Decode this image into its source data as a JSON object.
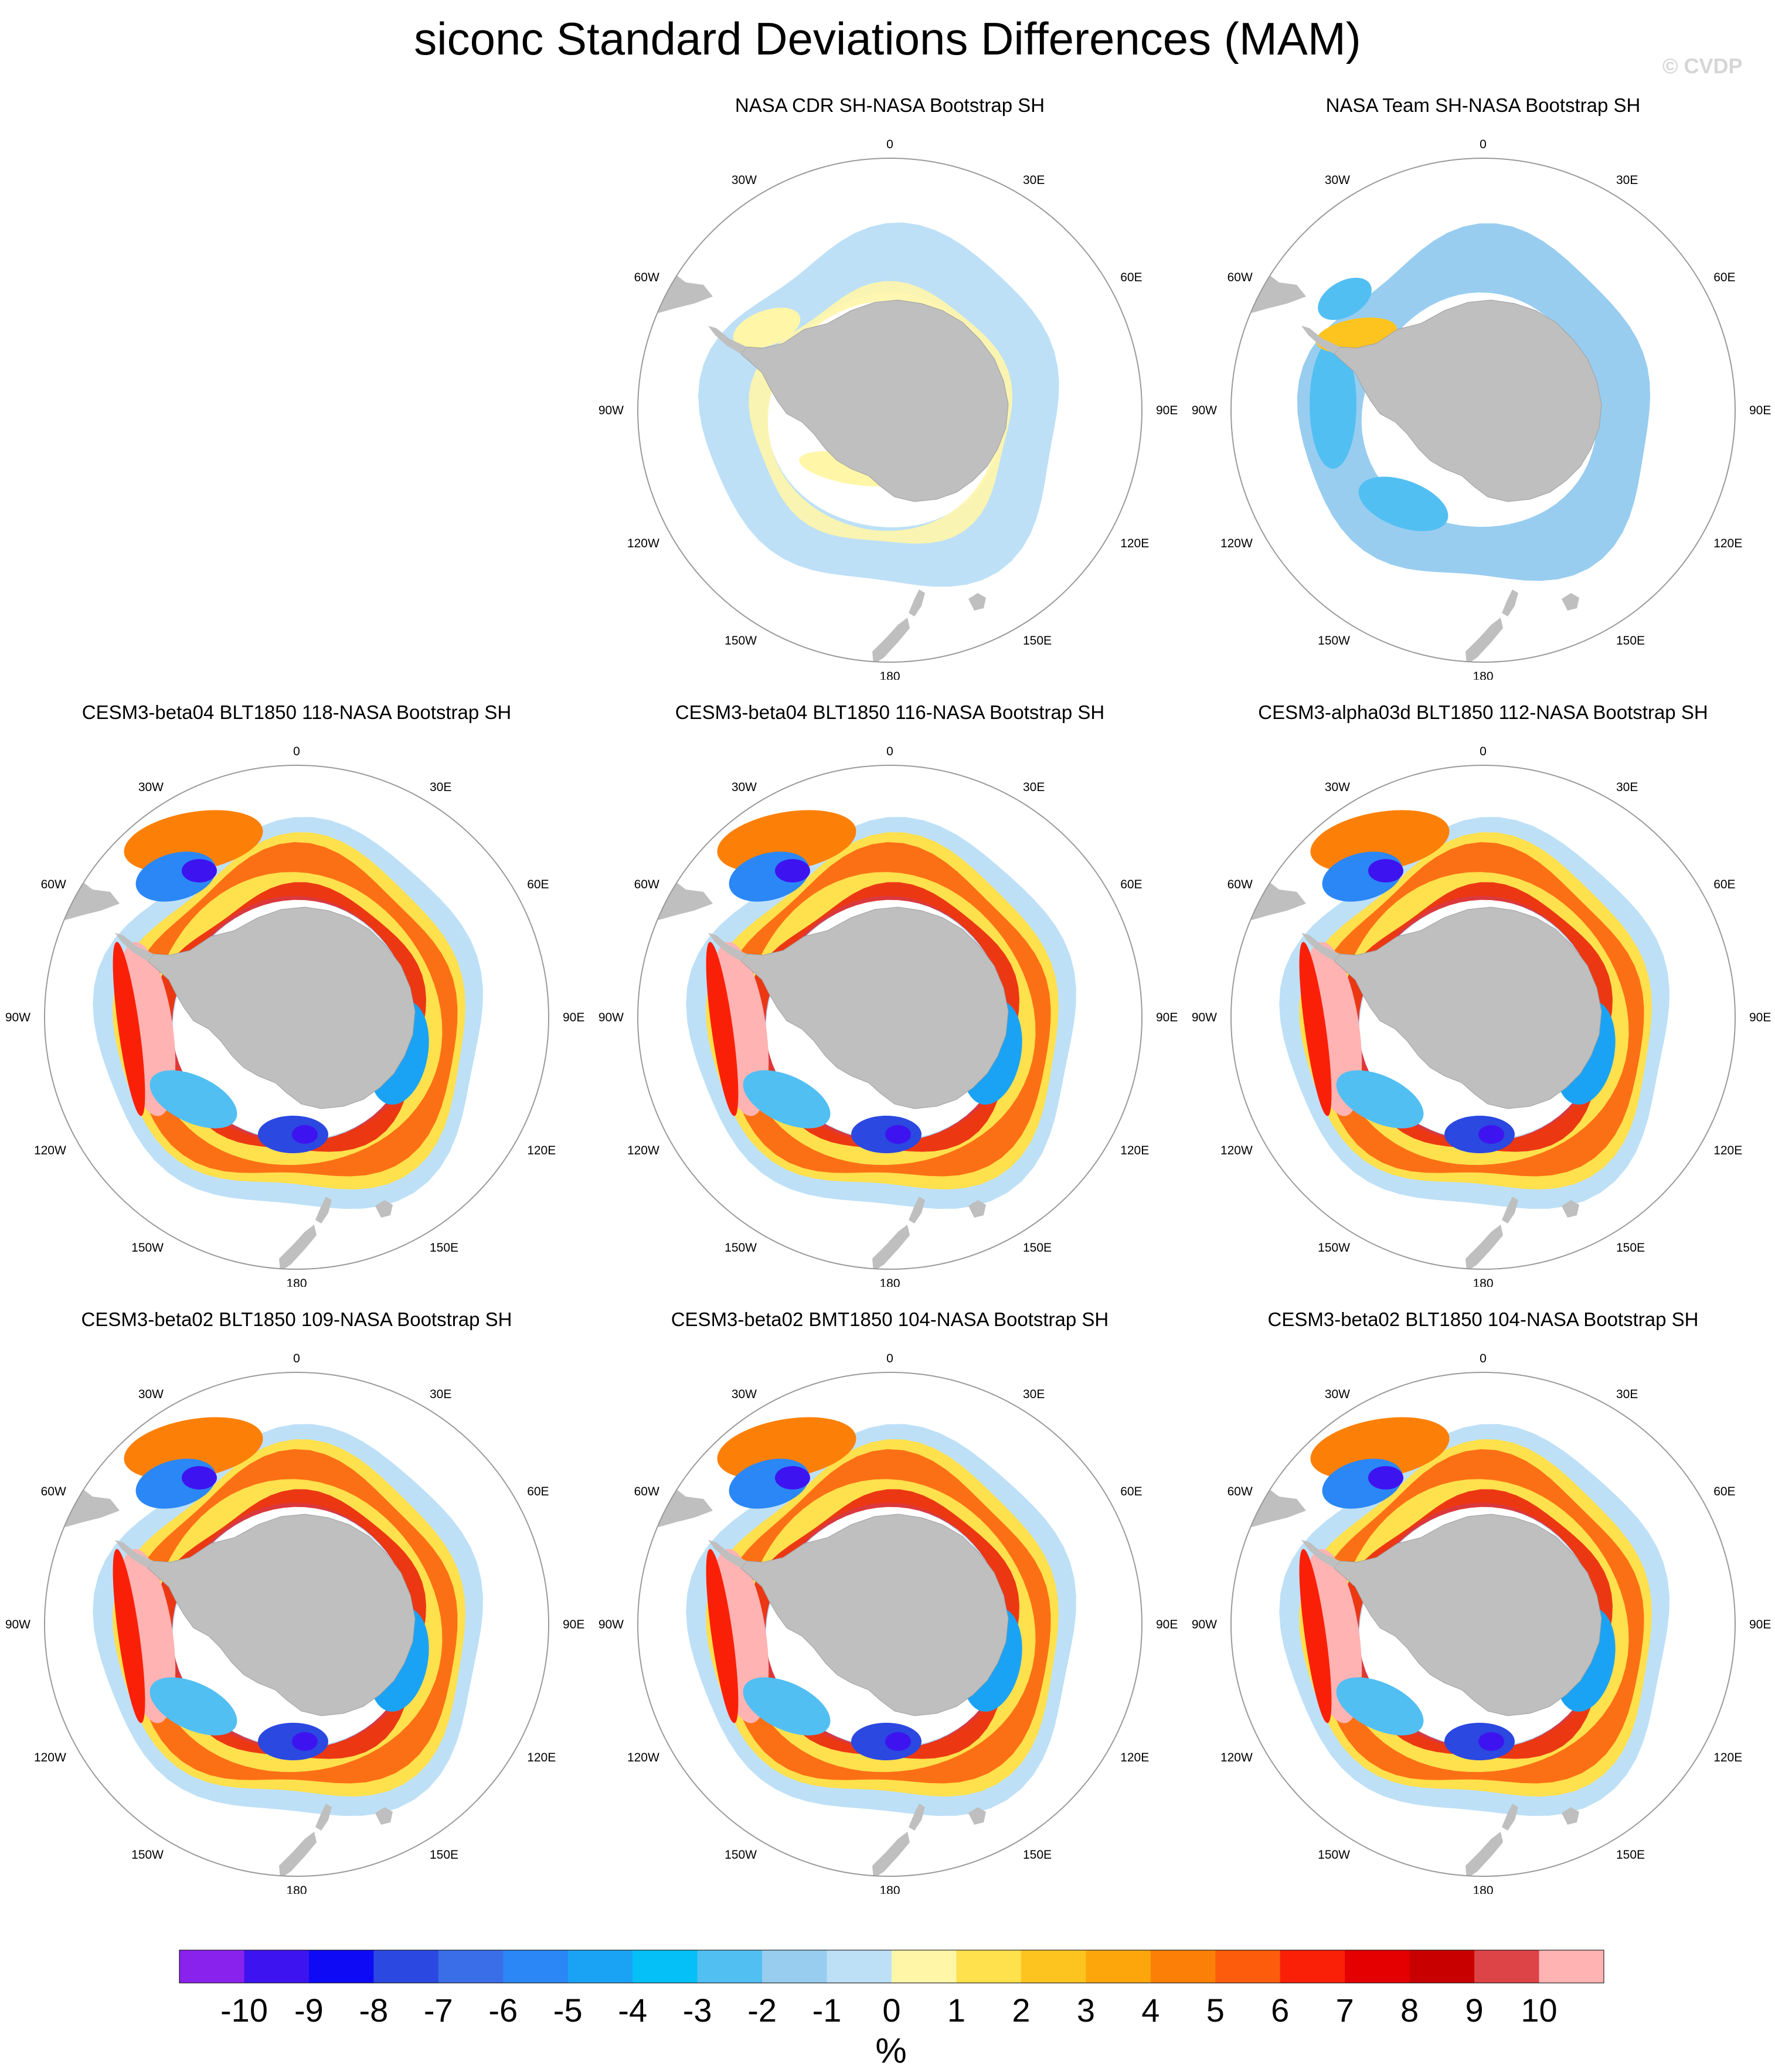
{
  "title": "siconc Standard Deviations Differences (MAM)",
  "watermark": "© CVDP",
  "lon_labels": [
    "0",
    "30E",
    "60E",
    "90E",
    "120E",
    "150E",
    "180",
    "150W",
    "120W",
    "90W",
    "60W",
    "30W"
  ],
  "panels": [
    {
      "title": "NASA CDR SH-NASA Bootstrap SH",
      "pattern": "obs-light"
    },
    {
      "title": "NASA Team SH-NASA Bootstrap SH",
      "pattern": "obs-blue"
    },
    {
      "title": "CESM3-beta04 BLT1850 118-NASA Bootstrap SH",
      "pattern": "model"
    },
    {
      "title": "CESM3-beta04 BLT1850 116-NASA Bootstrap SH",
      "pattern": "model"
    },
    {
      "title": "CESM3-alpha03d BLT1850 112-NASA Bootstrap SH",
      "pattern": "model"
    },
    {
      "title": "CESM3-beta02 BLT1850 109-NASA Bootstrap SH",
      "pattern": "model"
    },
    {
      "title": "CESM3-beta02 BMT1850 104-NASA Bootstrap SH",
      "pattern": "model"
    },
    {
      "title": "CESM3-beta02 BLT1850 104-NASA Bootstrap SH",
      "pattern": "model"
    }
  ],
  "colorbar": {
    "unit": "%",
    "tick_labels": [
      "-10",
      "-9",
      "-8",
      "-7",
      "-6",
      "-5",
      "-4",
      "-3",
      "-2",
      "-1",
      "0",
      "1",
      "2",
      "3",
      "4",
      "5",
      "6",
      "7",
      "8",
      "9",
      "10"
    ],
    "colors": [
      "#8a22ee",
      "#3d14f0",
      "#0f0af5",
      "#2b48e0",
      "#3a6ee8",
      "#2b87f5",
      "#1aa3f5",
      "#05c0f6",
      "#52bff2",
      "#98cdf0",
      "#bde0f7",
      "#fff6a8",
      "#ffe04d",
      "#fdc41f",
      "#fca60c",
      "#fc8008",
      "#fc5c0c",
      "#fa2008",
      "#e40000",
      "#c90000",
      "#dd4447",
      "#ffb3b3"
    ]
  },
  "colors": {
    "land": "#bfbfbf",
    "circle": "#9a9a9a"
  }
}
